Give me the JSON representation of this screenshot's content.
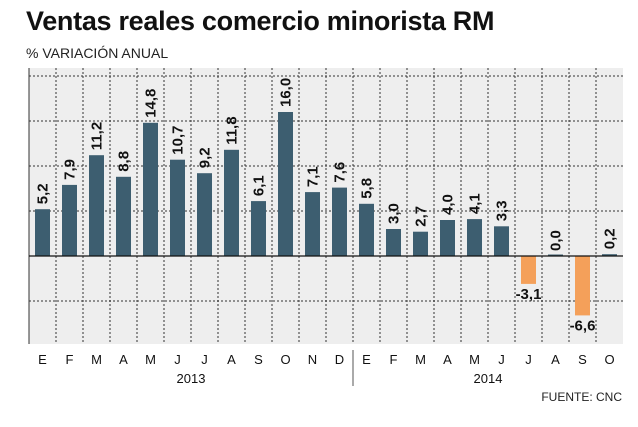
{
  "title": "Ventas reales comercio minorista RM",
  "subtitle": "% VARIACIÓN ANUAL",
  "source": "FUENTE: CNC",
  "colors": {
    "positive": "#3d5e70",
    "negative": "#f4a05a",
    "grid": "#333333",
    "background": "#eeeeee"
  },
  "chart_data": {
    "type": "bar",
    "categories": [
      "E",
      "F",
      "M",
      "A",
      "M",
      "J",
      "J",
      "A",
      "S",
      "O",
      "N",
      "D",
      "E",
      "F",
      "M",
      "A",
      "M",
      "J",
      "J",
      "A",
      "S",
      "O"
    ],
    "years": [
      {
        "label": "2013",
        "months": 12
      },
      {
        "label": "2014",
        "months": 10
      }
    ],
    "values": [
      5.2,
      7.9,
      11.2,
      8.8,
      14.8,
      10.7,
      9.2,
      11.8,
      6.1,
      16.0,
      7.1,
      7.6,
      5.8,
      3.0,
      2.7,
      4.0,
      4.1,
      3.3,
      -3.1,
      0.0,
      -6.6,
      0.2
    ],
    "value_labels": [
      "5,2",
      "7,9",
      "11,2",
      "8,8",
      "14,8",
      "10,7",
      "9,2",
      "11,8",
      "6,1",
      "16,0",
      "7,1",
      "7,6",
      "5,8",
      "3,0",
      "2,7",
      "4,0",
      "4,1",
      "3,3",
      "-3,1",
      "0,0",
      "-6,6",
      "0,2"
    ],
    "ylim": [
      -10,
      20
    ],
    "grid": true
  }
}
